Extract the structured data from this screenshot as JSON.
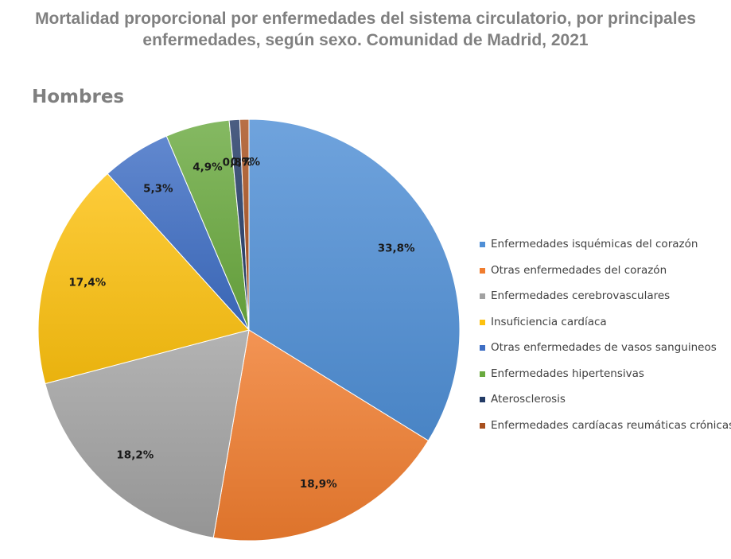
{
  "chart_data": {
    "type": "pie",
    "title": "Mortalidad proporcional por enfermedades del sistema circulatorio, por principales enfermedades, según sexo. Comunidad de Madrid, 2021",
    "subtitle": "Hombres",
    "slices": [
      {
        "label": "Enfermedades isquémicas del corazón",
        "value": 33.8,
        "display": "33,8%",
        "color": "#4f8fd6"
      },
      {
        "label": "Otras enfermedades del corazón",
        "value": 18.9,
        "display": "18,9%",
        "color": "#f07d2f"
      },
      {
        "label": "Enfermedades cerebrovasculares",
        "value": 18.2,
        "display": "18,2%",
        "color": "#a2a2a2"
      },
      {
        "label": "Insuficiencia cardíaca",
        "value": 17.4,
        "display": "17,4%",
        "color": "#fdc10f"
      },
      {
        "label": "Otras enfermedades de vasos sanguineos",
        "value": 5.3,
        "display": "5,3%",
        "color": "#3e6ec4"
      },
      {
        "label": "Enfermedades hipertensivas",
        "value": 4.9,
        "display": "4,9%",
        "color": "#6aaa3f"
      },
      {
        "label": "Aterosclerosis",
        "value": 0.8,
        "display": "0,8%",
        "color": "#233b66"
      },
      {
        "label": "Enfermedades cardíacas reumáticas crónicas",
        "value": 0.7,
        "display": "0,7%",
        "color": "#a8501e"
      }
    ],
    "legend_position": "right"
  }
}
